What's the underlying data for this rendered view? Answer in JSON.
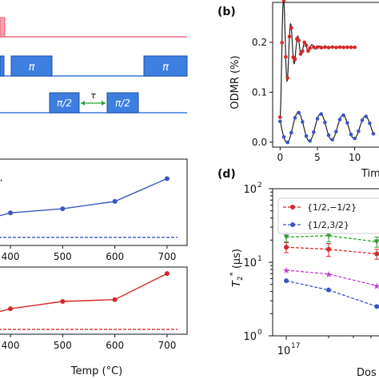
{
  "panels": {
    "b": "(b)",
    "d": "(d)"
  },
  "colors": {
    "pulse_pink": "#f06a83",
    "pulse_blue": "#3c78d8",
    "pulse_fill": "#3d7fe0",
    "wait_green": "#2ca02c",
    "red": "#d62728",
    "blue": "#3b55c4",
    "green": "#2ca02c",
    "magenta": "#bf3bd1",
    "fit": "#222222"
  },
  "pulse_sequence": {
    "pulse_labels": [
      "π",
      "π",
      "π/2",
      "π/2"
    ],
    "tau_label": "τ"
  },
  "chart_data": [
    {
      "id": "odmr",
      "type": "scatter",
      "panel_label": "(b)",
      "ylabel": "ODMR (%)",
      "xlabel": "Tim",
      "xlim": [
        -1,
        14
      ],
      "ylim": [
        -0.01,
        0.28
      ],
      "x_ticks": [
        "0",
        "5",
        "10"
      ],
      "y_ticks": [
        "0.0",
        "0.1",
        "0.2"
      ],
      "series": [
        {
          "color_key": "red",
          "marker": "circle",
          "points_x": [
            0,
            0.25,
            0.5,
            0.75,
            1.0,
            1.25,
            1.5,
            1.75,
            2.0,
            2.25,
            2.5,
            2.75,
            3.0,
            3.25,
            3.5,
            3.75,
            4.0,
            4.5,
            5.0,
            5.5,
            6.0,
            6.5,
            7.0,
            7.5,
            8.0,
            8.5,
            9.0,
            9.5,
            10.0
          ],
          "offset": 0.19,
          "amp": 0.14,
          "tau": 1.3,
          "period": 0.95,
          "phase": 3.14
        },
        {
          "color_key": "blue",
          "marker": "circle",
          "points_x": [
            0,
            0.5,
            1.0,
            1.5,
            2.0,
            2.5,
            3.0,
            3.5,
            4.0,
            4.5,
            5.0,
            5.5,
            6.0,
            6.5,
            7.0,
            7.5,
            8.0,
            8.5,
            9.0,
            9.5,
            10.0,
            10.5,
            11.0,
            11.5,
            12.0,
            12.5
          ],
          "offset": 0.03,
          "amp": 0.032,
          "tau": 30,
          "period": 3.0,
          "phase": 1.2
        }
      ]
    },
    {
      "id": "temp_upper",
      "type": "line",
      "x": [
        400,
        500,
        600,
        700
      ],
      "y": [
        0.4,
        0.45,
        0.54,
        0.82
      ],
      "color_key": "blue",
      "baseline": 0.1,
      "xlim": [
        380,
        720
      ],
      "ylim": [
        0,
        1
      ]
    },
    {
      "id": "temp_lower",
      "type": "line",
      "x": [
        400,
        500,
        600,
        700
      ],
      "y": [
        0.42,
        0.54,
        0.57,
        1.0
      ],
      "color_key": "red",
      "baseline": 0.08,
      "xlim": [
        380,
        720
      ],
      "ylim": [
        0,
        1.08
      ],
      "xlabel": "Temp (°C)",
      "x_ticks": [
        "400",
        "500",
        "600",
        "700"
      ]
    },
    {
      "id": "t2star",
      "type": "line",
      "panel_label": "(d)",
      "ylabel": "T2* (μs)",
      "ylabel_main": "T",
      "ylabel_sub": "2",
      "ylabel_sup": "*",
      "ylabel_unit": " (μs)",
      "xlabel": "Dos",
      "x_scale": "log",
      "y_scale": "log",
      "xlim": [
        8e+16,
        5e+17
      ],
      "ylim": [
        1,
        100
      ],
      "x_tick_labels": [
        {
          "base": "10",
          "exp": "17"
        }
      ],
      "y_tick_labels": [
        {
          "base": "10",
          "exp": "0",
          "value": 1
        },
        {
          "base": "10",
          "exp": "1",
          "value": 10
        },
        {
          "base": "10",
          "exp": "2",
          "value": 100
        }
      ],
      "legend": [
        {
          "label": "{1/2,−1/2}",
          "color_key": "red"
        },
        {
          "label": "{1/2,3/2}",
          "color_key": "blue"
        }
      ],
      "series": [
        {
          "color_key": "green",
          "marker": "v",
          "x": [
            1e+17,
            2e+17,
            4.4e+17
          ],
          "y": [
            22,
            23,
            19
          ],
          "yerr": [
            3,
            4,
            3
          ]
        },
        {
          "color_key": "red",
          "marker": "circle",
          "x": [
            1e+17,
            2e+17,
            4.4e+17
          ],
          "y": [
            16,
            15,
            13
          ],
          "yerr": [
            2.5,
            3,
            2
          ]
        },
        {
          "color_key": "magenta",
          "marker": "star",
          "x": [
            1e+17,
            2e+17,
            4.4e+17
          ],
          "y": [
            7.8,
            6.9,
            4.8
          ]
        },
        {
          "color_key": "blue",
          "marker": "circle",
          "x": [
            1e+17,
            2e+17,
            4.4e+17
          ],
          "y": [
            5.6,
            4.2,
            2.5
          ]
        }
      ]
    }
  ]
}
